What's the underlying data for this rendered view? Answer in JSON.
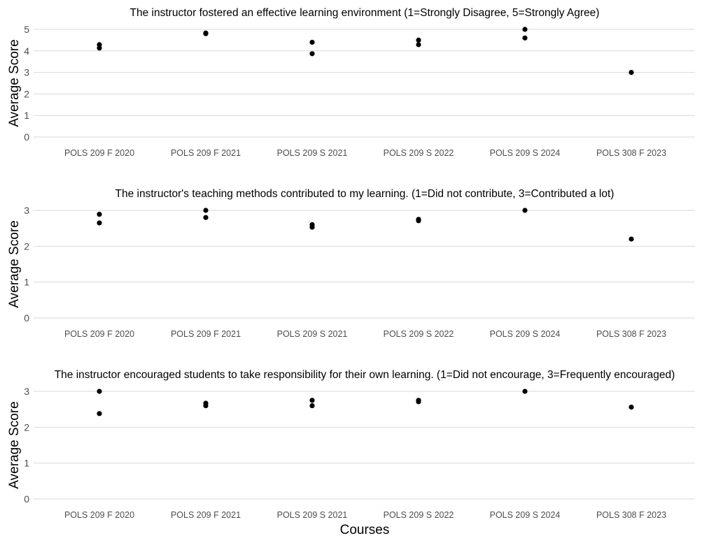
{
  "chart_data": [
    {
      "type": "scatter",
      "title": "The instructor fostered an effective learning environment (1=Strongly Disagree, 5=Strongly Agree)",
      "ylabel": "Average Score",
      "xlabel": "",
      "ylim": [
        0,
        5
      ],
      "yticks": [
        "0",
        "1",
        "2",
        "3",
        "4",
        "5"
      ],
      "grid": true,
      "categories": [
        "POLS 209 F 2020",
        "POLS 209 F 2021",
        "POLS 209 S 2021",
        "POLS 209 S 2022",
        "POLS 209 S 2024",
        "POLS 308 F 2023"
      ],
      "points": [
        {
          "x": "POLS 209 F 2020",
          "y": 4.29
        },
        {
          "x": "POLS 209 F 2020",
          "y": 4.13
        },
        {
          "x": "POLS 209 F 2021",
          "y": 4.8
        },
        {
          "x": "POLS 209 F 2021",
          "y": 4.83
        },
        {
          "x": "POLS 209 S 2021",
          "y": 4.4
        },
        {
          "x": "POLS 209 S 2021",
          "y": 3.87
        },
        {
          "x": "POLS 209 S 2022",
          "y": 4.5
        },
        {
          "x": "POLS 209 S 2022",
          "y": 4.29
        },
        {
          "x": "POLS 209 S 2024",
          "y": 5.0
        },
        {
          "x": "POLS 209 S 2024",
          "y": 4.6
        },
        {
          "x": "POLS 308 F 2023",
          "y": 3.0
        }
      ]
    },
    {
      "type": "scatter",
      "title": "The instructor's teaching methods contributed to my learning. (1=Did not contribute, 3=Contributed a lot)",
      "ylabel": "Average Score",
      "xlabel": "",
      "ylim": [
        0,
        3
      ],
      "yticks": [
        "0",
        "1",
        "2",
        "3"
      ],
      "grid": true,
      "categories": [
        "POLS 209 F 2020",
        "POLS 209 F 2021",
        "POLS 209 S 2021",
        "POLS 209 S 2022",
        "POLS 209 S 2024",
        "POLS 308 F 2023"
      ],
      "points": [
        {
          "x": "POLS 209 F 2020",
          "y": 2.89
        },
        {
          "x": "POLS 209 F 2020",
          "y": 2.65
        },
        {
          "x": "POLS 209 F 2021",
          "y": 3.0
        },
        {
          "x": "POLS 209 F 2021",
          "y": 2.8
        },
        {
          "x": "POLS 209 S 2021",
          "y": 2.6
        },
        {
          "x": "POLS 209 S 2021",
          "y": 2.53
        },
        {
          "x": "POLS 209 S 2022",
          "y": 2.75
        },
        {
          "x": "POLS 209 S 2022",
          "y": 2.71
        },
        {
          "x": "POLS 209 S 2024",
          "y": 3.0
        },
        {
          "x": "POLS 308 F 2023",
          "y": 2.2
        }
      ]
    },
    {
      "type": "scatter",
      "title": "The instructor encouraged students to take responsibility for their own learning. (1=Did not encourage, 3=Frequently encouraged)",
      "ylabel": "Average Score",
      "xlabel": "Courses",
      "ylim": [
        0,
        3
      ],
      "yticks": [
        "0",
        "1",
        "2",
        "3"
      ],
      "grid": true,
      "categories": [
        "POLS 209 F 2020",
        "POLS 209 F 2021",
        "POLS 209 S 2021",
        "POLS 209 S 2022",
        "POLS 209 S 2024",
        "POLS 308 F 2023"
      ],
      "points": [
        {
          "x": "POLS 209 F 2020",
          "y": 3.0
        },
        {
          "x": "POLS 209 F 2020",
          "y": 2.38
        },
        {
          "x": "POLS 209 F 2021",
          "y": 2.67
        },
        {
          "x": "POLS 209 F 2021",
          "y": 2.6
        },
        {
          "x": "POLS 209 S 2021",
          "y": 2.75
        },
        {
          "x": "POLS 209 S 2021",
          "y": 2.6
        },
        {
          "x": "POLS 209 S 2022",
          "y": 2.75
        },
        {
          "x": "POLS 209 S 2022",
          "y": 2.71
        },
        {
          "x": "POLS 209 S 2024",
          "y": 3.0
        },
        {
          "x": "POLS 308 F 2023",
          "y": 2.56
        }
      ]
    }
  ]
}
